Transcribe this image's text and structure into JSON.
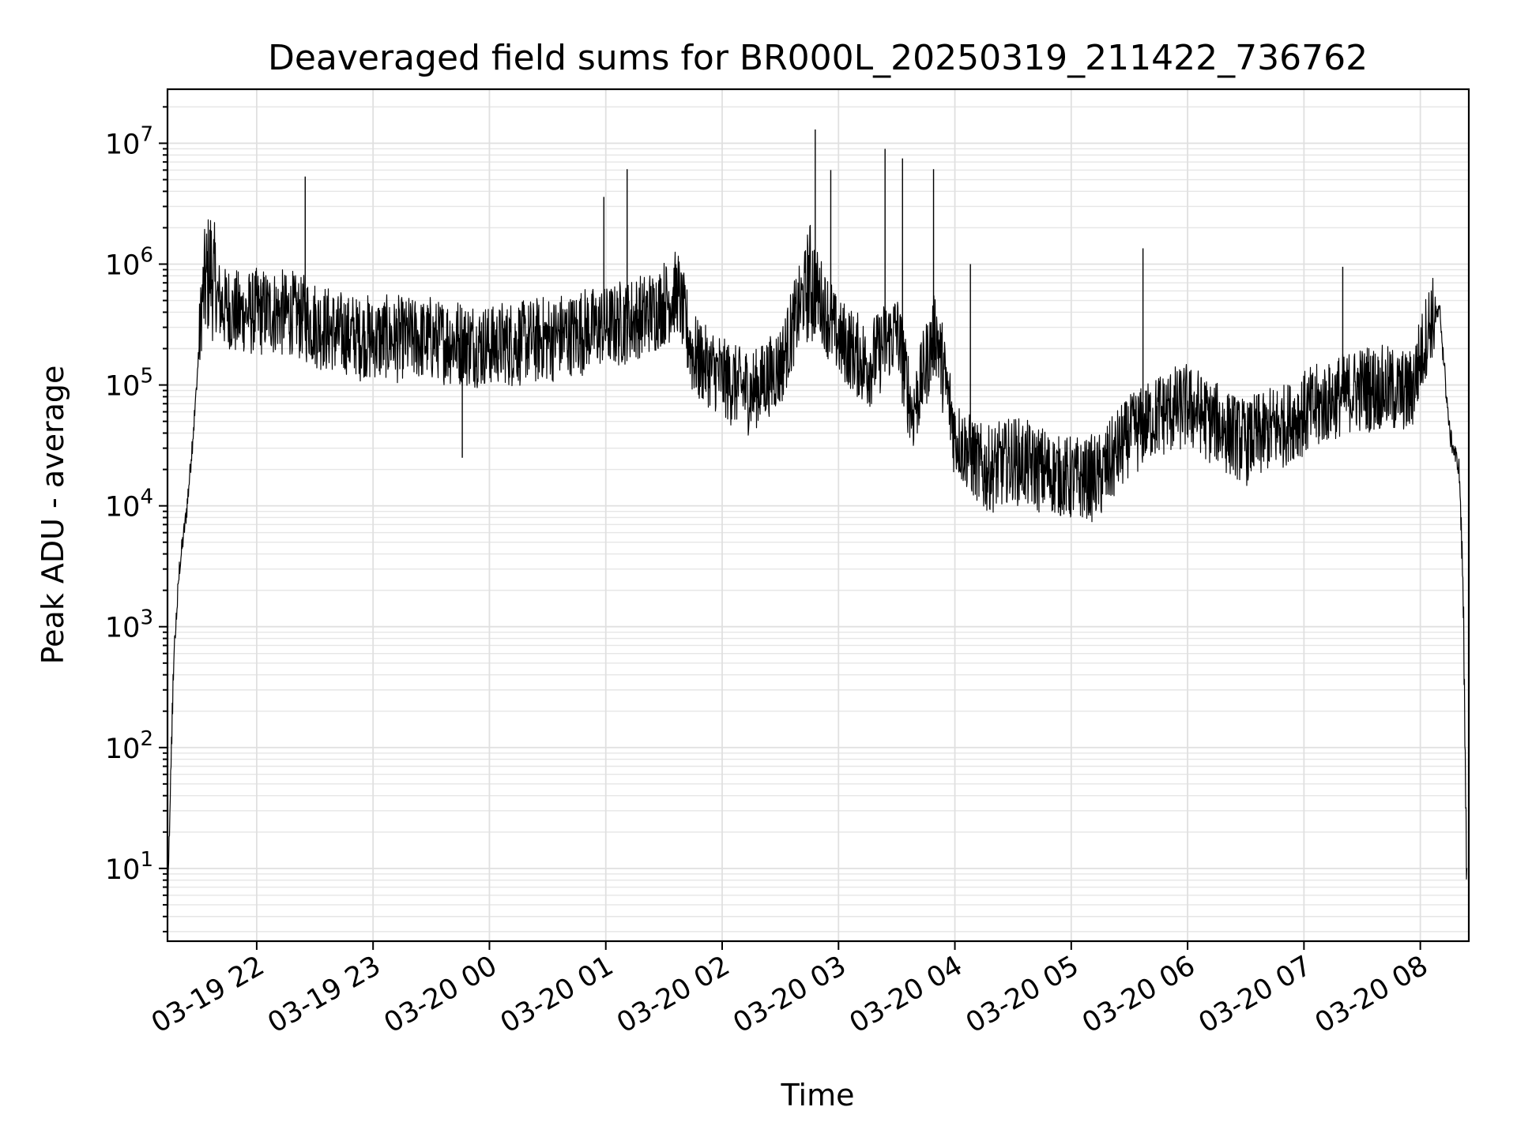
{
  "chart_data": {
    "type": "line",
    "title": "Deaveraged field sums for BR000L_20250319_211422_736762",
    "xlabel": "Time",
    "ylabel": "Peak ADU - average",
    "yscale": "log",
    "ylim": [
      2.5,
      28000000
    ],
    "xlim": [
      "2025-03-19 21:14",
      "2025-03-20 08:25"
    ],
    "grid": true,
    "x_tick_labels": [
      "03-19 22",
      "03-19 23",
      "03-20 00",
      "03-20 01",
      "03-20 02",
      "03-20 03",
      "03-20 04",
      "03-20 05",
      "03-20 06",
      "03-20 07",
      "03-20 08"
    ],
    "y_ticks": [
      {
        "base": "10",
        "exp": "1"
      },
      {
        "base": "10",
        "exp": "2"
      },
      {
        "base": "10",
        "exp": "3"
      },
      {
        "base": "10",
        "exp": "4"
      },
      {
        "base": "10",
        "exp": "5"
      },
      {
        "base": "10",
        "exp": "6"
      },
      {
        "base": "10",
        "exp": "7"
      }
    ],
    "series": [
      {
        "color": "#000000",
        "x": [
          "2025-03-19 21:14",
          "2025-03-19 21:17",
          "2025-03-19 21:20",
          "2025-03-19 21:24",
          "2025-03-19 21:28",
          "2025-03-19 21:32",
          "2025-03-19 21:36",
          "2025-03-19 21:40",
          "2025-03-19 21:50",
          "2025-03-19 22:00",
          "2025-03-19 22:20",
          "2025-03-19 22:40",
          "2025-03-19 23:00",
          "2025-03-19 23:30",
          "2025-03-20 00:00",
          "2025-03-20 00:30",
          "2025-03-20 01:00",
          "2025-03-20 01:20",
          "2025-03-20 01:37",
          "2025-03-20 01:45",
          "2025-03-20 02:00",
          "2025-03-20 02:15",
          "2025-03-20 02:30",
          "2025-03-20 02:45",
          "2025-03-20 03:00",
          "2025-03-20 03:15",
          "2025-03-20 03:30",
          "2025-03-20 03:38",
          "2025-03-20 03:50",
          "2025-03-20 04:00",
          "2025-03-20 04:15",
          "2025-03-20 04:30",
          "2025-03-20 05:00",
          "2025-03-20 05:15",
          "2025-03-20 05:30",
          "2025-03-20 05:45",
          "2025-03-20 06:00",
          "2025-03-20 06:30",
          "2025-03-20 07:00",
          "2025-03-20 07:30",
          "2025-03-20 07:55",
          "2025-03-20 08:05",
          "2025-03-20 08:10",
          "2025-03-20 08:15",
          "2025-03-20 08:20",
          "2025-03-20 08:22",
          "2025-03-20 08:24"
        ],
        "y": [
          5,
          500,
          3000,
          10000,
          60000,
          600000,
          1000000,
          500000,
          400000,
          420000,
          400000,
          280000,
          250000,
          250000,
          220000,
          250000,
          320000,
          380000,
          600000,
          180000,
          120000,
          90000,
          150000,
          800000,
          250000,
          150000,
          300000,
          60000,
          300000,
          40000,
          20000,
          25000,
          17000,
          18000,
          40000,
          60000,
          70000,
          35000,
          60000,
          100000,
          90000,
          350000,
          400000,
          40000,
          20000,
          2000,
          5
        ],
        "spikes": [
          {
            "x": "2025-03-19 22:25",
            "y": 5300000
          },
          {
            "x": "2025-03-20 00:59",
            "y": 3600000
          },
          {
            "x": "2025-03-20 01:11",
            "y": 6100000
          },
          {
            "x": "2025-03-20 02:48",
            "y": 13000000
          },
          {
            "x": "2025-03-20 02:56",
            "y": 6000000
          },
          {
            "x": "2025-03-20 03:24",
            "y": 9000000
          },
          {
            "x": "2025-03-20 03:33",
            "y": 7500000
          },
          {
            "x": "2025-03-20 03:49",
            "y": 6100000
          },
          {
            "x": "2025-03-20 04:08",
            "y": 1000000
          },
          {
            "x": "2025-03-20 05:37",
            "y": 1350000
          },
          {
            "x": "2025-03-20 07:20",
            "y": 950000
          },
          {
            "x": "2025-03-19 23:46",
            "y": 25000
          }
        ]
      }
    ]
  }
}
